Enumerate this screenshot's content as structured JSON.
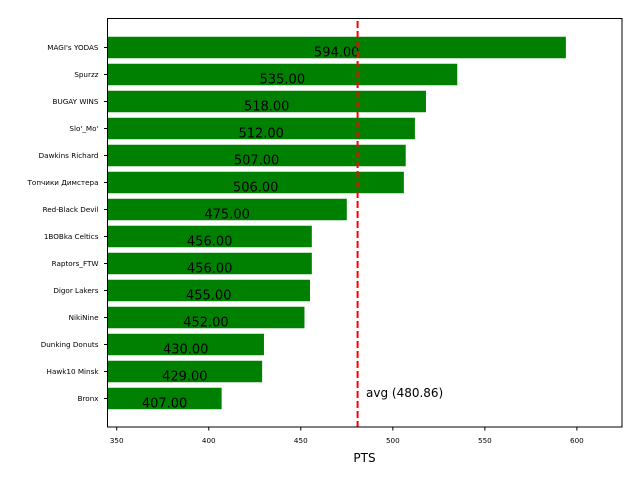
{
  "chart_data": {
    "type": "bar",
    "orientation": "horizontal",
    "title": "",
    "xlabel": "PTS",
    "ylabel": "",
    "xlim": [
      345,
      624.5
    ],
    "xticks": [
      350,
      400,
      450,
      500,
      550,
      600
    ],
    "xtick_labels": [
      "350",
      "400",
      "450",
      "500",
      "550",
      "600"
    ],
    "grid": false,
    "legend": null,
    "bar_color": "#008000",
    "categories": [
      "MAGI's YODAS",
      "Spurzz",
      "BUGAY WINS",
      "Slo'_Mo'",
      "Dawkins Richard",
      "Топчики Димстера",
      "Red-Black Devil",
      "1BOBka Celtics",
      "Raptors_FTW",
      "Digor Lakers",
      "NikiNine",
      "Dunking Donuts",
      "Hawk10 Minsk",
      "Bronx"
    ],
    "values": [
      594,
      535,
      518,
      512,
      507,
      506,
      475,
      456,
      456,
      455,
      452,
      430,
      429,
      407
    ],
    "value_labels": [
      "594.00",
      "535.00",
      "518.00",
      "512.00",
      "507.00",
      "506.00",
      "475.00",
      "456.00",
      "456.00",
      "455.00",
      "452.00",
      "430.00",
      "429.00",
      "407.00"
    ],
    "reference_line": {
      "orientation": "vertical",
      "value": 480.86,
      "label": "avg (480.86)",
      "color": "#ff0000",
      "style": "dashed"
    }
  }
}
